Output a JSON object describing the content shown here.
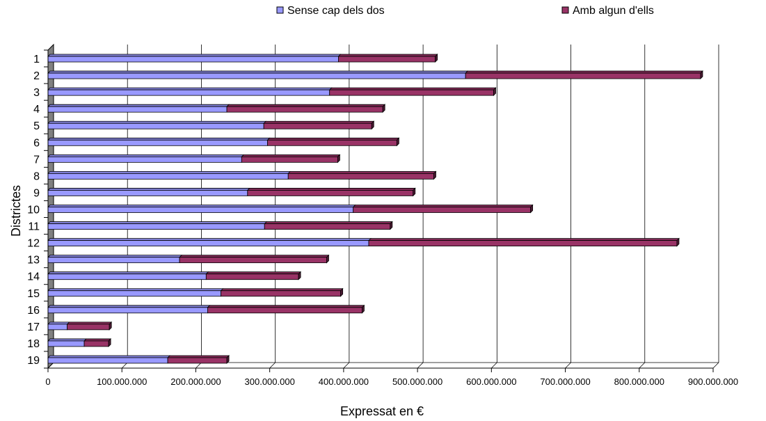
{
  "chart_data": {
    "type": "bar",
    "orientation": "horizontal",
    "stacked": true,
    "categories": [
      "1",
      "2",
      "3",
      "4",
      "5",
      "6",
      "7",
      "8",
      "9",
      "10",
      "11",
      "12",
      "13",
      "14",
      "15",
      "16",
      "17",
      "18",
      "19"
    ],
    "series": [
      {
        "name": "Sense cap dels dos",
        "color": "#9999ff",
        "values": [
          393000000,
          565000000,
          381000000,
          242000000,
          292000000,
          297000000,
          262000000,
          325000000,
          270000000,
          413000000,
          293000000,
          434000000,
          178000000,
          214000000,
          234000000,
          216000000,
          26000000,
          49000000,
          162000000
        ]
      },
      {
        "name": "Amb algun d'ells",
        "color": "#993366",
        "values": [
          131000000,
          318000000,
          222000000,
          211000000,
          146000000,
          175000000,
          130000000,
          197000000,
          224000000,
          240000000,
          170000000,
          417000000,
          199000000,
          125000000,
          162000000,
          209000000,
          57000000,
          33000000,
          80000000
        ]
      }
    ],
    "xlabel": "Expressat en €",
    "ylabel": "Districtes",
    "xlim": [
      0,
      900000000
    ],
    "xticks": [
      "0",
      "100.000.000",
      "200.000.000",
      "300.000.000",
      "400.000.000",
      "500.000.000",
      "600.000.000",
      "700.000.000",
      "800.000.000",
      "900.000.000"
    ],
    "grid": true,
    "legend": "top"
  }
}
